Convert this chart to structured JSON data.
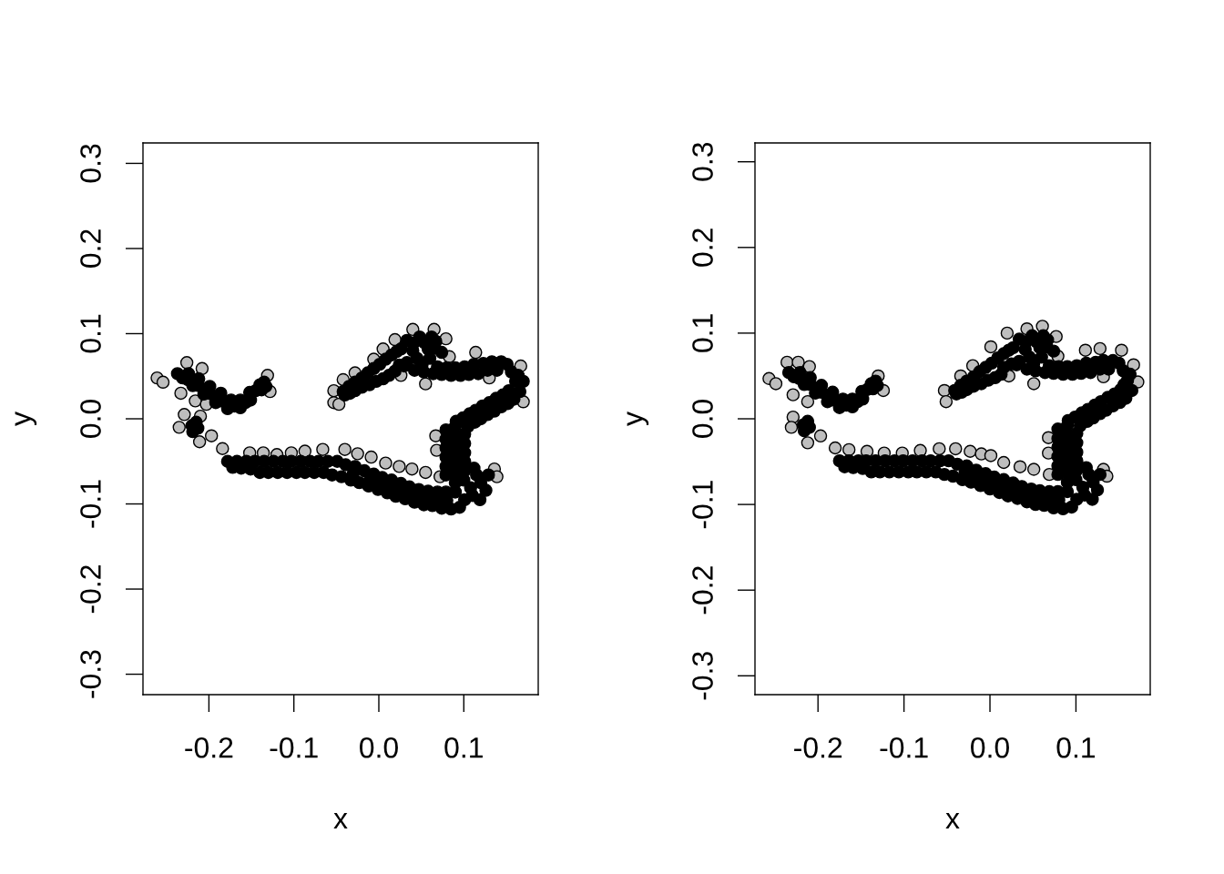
{
  "chart_data": [
    {
      "type": "scatter",
      "xlabel": "x",
      "ylabel": "y",
      "marker": "circle",
      "xlim": [
        -0.2776,
        0.1876
      ],
      "ylim": [
        -0.324,
        0.324
      ],
      "xticks": [
        -0.2,
        -0.1,
        {
          "value": 0,
          "label": "0.0"
        },
        0.1
      ],
      "yticks": [
        -0.3,
        -0.2,
        -0.1,
        {
          "value": 0,
          "label": "0.0"
        },
        0.1,
        0.2,
        0.3
      ],
      "series": [
        {
          "color": "#bebebe",
          "x": [
            -0.261,
            -0.254,
            -0.226,
            -0.208,
            -0.233,
            -0.216,
            -0.203,
            -0.229,
            -0.235,
            -0.211,
            -0.197,
            -0.21,
            -0.128,
            -0.131,
            -0.053,
            -0.053,
            -0.047,
            -0.184,
            -0.152,
            -0.136,
            -0.12,
            -0.103,
            -0.087,
            -0.066,
            -0.04,
            -0.025,
            -0.009,
            0.008,
            0.024,
            0.039,
            0.055,
            0.072,
            0.136,
            0.139,
            0.04,
            0.065,
            0.079,
            0.083,
            0.114,
            0.167,
            0.17,
            0.026,
            0.055,
            0.13,
            -0.042,
            -0.028,
            -0.006,
            0.005,
            0.019,
            0.068,
            0.067
          ],
          "values": [
            0.048,
            0.043,
            0.066,
            0.059,
            0.03,
            0.021,
            0.017,
            0.005,
            -0.01,
            -0.027,
            -0.02,
            0.003,
            0.032,
            0.051,
            0.033,
            0.019,
            0.017,
            -0.035,
            -0.04,
            -0.04,
            -0.042,
            -0.04,
            -0.038,
            -0.036,
            -0.036,
            -0.041,
            -0.045,
            -0.052,
            -0.056,
            -0.059,
            -0.063,
            -0.068,
            -0.059,
            -0.068,
            0.105,
            0.105,
            0.094,
            0.073,
            0.078,
            0.062,
            0.02,
            0.051,
            0.041,
            0.048,
            0.046,
            0.054,
            0.07,
            0.082,
            0.093,
            -0.037,
            -0.02
          ]
        },
        {
          "color": "#000000",
          "x": [
            -0.237,
            -0.224,
            -0.212,
            -0.199,
            -0.186,
            -0.174,
            -0.163,
            -0.152,
            -0.14,
            -0.133,
            -0.231,
            -0.219,
            -0.206,
            -0.192,
            -0.178,
            -0.163,
            -0.151,
            -0.138,
            -0.135,
            -0.225,
            -0.212,
            -0.199,
            -0.186,
            -0.17,
            -0.157,
            -0.145,
            -0.22,
            -0.213,
            -0.219,
            -0.215,
            -0.178,
            -0.167,
            -0.156,
            -0.146,
            -0.135,
            -0.124,
            -0.113,
            -0.103,
            -0.092,
            -0.081,
            -0.071,
            -0.06,
            -0.049,
            -0.039,
            -0.028,
            -0.017,
            -0.006,
            0.004,
            0.015,
            0.026,
            0.036,
            0.047,
            0.058,
            0.069,
            0.079,
            -0.172,
            -0.162,
            -0.151,
            -0.14,
            -0.13,
            -0.119,
            -0.108,
            -0.097,
            -0.087,
            -0.076,
            -0.065,
            -0.055,
            -0.044,
            -0.033,
            -0.023,
            -0.012,
            -0.001,
            0.01,
            0.02,
            0.031,
            0.042,
            0.053,
            0.063,
            0.074,
            0.085,
            0.095,
            -0.03,
            -0.01,
            0.0,
            0.01,
            0.02,
            0.03,
            0.04,
            0.05,
            0.06,
            0.07,
            0.08,
            0.115,
            0.129,
            0.108,
            0.126,
            0.101,
            0.119,
            0.12,
            0.11,
            0.1,
            0.09,
            0.09,
            0.112,
            0.079,
            0.079,
            0.079,
            0.079,
            0.079,
            0.079,
            0.09,
            0.09,
            0.09,
            0.09,
            0.09,
            0.09,
            0.101,
            0.101,
            0.101,
            0.101,
            0.101,
            0.091,
            0.099,
            0.107,
            0.114,
            0.122,
            0.13,
            0.138,
            0.146,
            0.153,
            0.105,
            0.113,
            0.12,
            0.128,
            0.136,
            0.144,
            0.152,
            0.159,
            0.166,
            0.161,
            0.156,
            0.151,
            0.17,
            0.164,
            0.144,
            0.133,
            0.123,
            0.112,
            0.101,
            0.09,
            0.08,
            0.069,
            0.139,
            0.128,
            0.117,
            0.106,
            0.096,
            0.085,
            0.074,
            0.064,
            0.053,
            0.042,
            0.033,
            0.048,
            0.062,
            0.067,
            0.04,
            0.058,
            0.074,
            0.033,
            0.051,
            0.041,
            0.054,
            0.066,
            0.045,
            0.06,
            -0.042,
            -0.035,
            -0.028,
            -0.02,
            -0.013,
            -0.006,
            0.001,
            0.008,
            0.015,
            0.021,
            0.026,
            -0.04,
            -0.034,
            -0.028,
            -0.02,
            -0.011,
            -0.003,
            0.005,
            0.012,
            0.019,
            0.024,
            0.03
          ],
          "values": [
            0.053,
            0.053,
            0.047,
            0.038,
            0.03,
            0.022,
            0.022,
            0.031,
            0.04,
            0.038,
            0.048,
            0.039,
            0.029,
            0.019,
            0.012,
            0.013,
            0.022,
            0.034,
            0.043,
            0.046,
            0.039,
            0.03,
            0.021,
            0.015,
            0.019,
            0.033,
            -0.008,
            -0.011,
            -0.015,
            -0.004,
            -0.05,
            -0.05,
            -0.05,
            -0.05,
            -0.05,
            -0.05,
            -0.05,
            -0.05,
            -0.05,
            -0.05,
            -0.05,
            -0.05,
            -0.05,
            -0.054,
            -0.056,
            -0.061,
            -0.065,
            -0.069,
            -0.072,
            -0.076,
            -0.08,
            -0.083,
            -0.085,
            -0.086,
            -0.086,
            -0.057,
            -0.058,
            -0.059,
            -0.063,
            -0.063,
            -0.063,
            -0.063,
            -0.063,
            -0.063,
            -0.063,
            -0.063,
            -0.066,
            -0.068,
            -0.072,
            -0.075,
            -0.079,
            -0.083,
            -0.087,
            -0.091,
            -0.094,
            -0.098,
            -0.101,
            -0.102,
            -0.105,
            -0.106,
            -0.104,
            -0.064,
            -0.071,
            -0.075,
            -0.079,
            -0.082,
            -0.086,
            -0.089,
            -0.092,
            -0.094,
            -0.095,
            -0.096,
            -0.066,
            -0.066,
            -0.081,
            -0.084,
            -0.095,
            -0.095,
            -0.075,
            -0.09,
            -0.072,
            -0.075,
            -0.086,
            -0.058,
            -0.066,
            -0.056,
            -0.045,
            -0.034,
            -0.024,
            -0.013,
            -0.063,
            -0.052,
            -0.041,
            -0.031,
            -0.02,
            -0.009,
            -0.061,
            -0.05,
            -0.04,
            -0.029,
            -0.018,
            -0.003,
            0.001,
            0.006,
            0.01,
            0.015,
            0.019,
            0.024,
            0.028,
            0.033,
            -0.009,
            -0.004,
            0.0,
            0.005,
            0.009,
            0.014,
            0.018,
            0.023,
            0.032,
            0.044,
            0.055,
            0.064,
            0.044,
            0.051,
            0.067,
            0.067,
            0.065,
            0.064,
            0.061,
            0.06,
            0.06,
            0.061,
            0.057,
            0.057,
            0.053,
            0.052,
            0.051,
            0.051,
            0.052,
            0.053,
            0.055,
            0.057,
            0.092,
            0.096,
            0.096,
            0.091,
            0.08,
            0.082,
            0.078,
            0.066,
            0.064,
            0.089,
            0.089,
            0.083,
            0.071,
            0.071,
            0.032,
            0.038,
            0.043,
            0.048,
            0.054,
            0.059,
            0.064,
            0.07,
            0.075,
            0.079,
            0.082,
            0.028,
            0.03,
            0.033,
            0.037,
            0.04,
            0.044,
            0.047,
            0.051,
            0.056,
            0.063,
            0.062
          ]
        }
      ]
    },
    {
      "type": "scatter",
      "xlabel": "x",
      "ylabel": "y",
      "marker": "circle",
      "xlim": [
        -0.2733,
        0.1864
      ],
      "ylim": [
        -0.322,
        0.322
      ],
      "xticks": [
        -0.2,
        -0.1,
        {
          "value": 0,
          "label": "0.0"
        },
        0.1
      ],
      "yticks": [
        -0.3,
        -0.2,
        -0.1,
        {
          "value": 0,
          "label": "0.0"
        },
        0.1,
        0.2,
        0.3
      ],
      "series": [
        {
          "color": "#bebebe",
          "x": [
            -0.257,
            -0.249,
            -0.236,
            -0.223,
            -0.21,
            -0.229,
            -0.212,
            -0.229,
            -0.231,
            -0.197,
            -0.212,
            -0.13,
            -0.124,
            -0.053,
            -0.051,
            -0.18,
            -0.164,
            -0.143,
            -0.123,
            -0.102,
            -0.081,
            -0.059,
            -0.04,
            -0.023,
            -0.01,
            0.001,
            0.016,
            0.035,
            0.051,
            0.069,
            0.132,
            0.136,
            0.068,
            0.068,
            0.043,
            0.061,
            0.077,
            0.079,
            0.111,
            0.128,
            0.153,
            0.167,
            0.172,
            0.022,
            0.051,
            0.132,
            0.001,
            0.02,
            -0.02,
            -0.034
          ],
          "values": [
            0.047,
            0.041,
            0.066,
            0.066,
            0.061,
            0.028,
            0.02,
            0.002,
            -0.01,
            -0.02,
            -0.028,
            0.05,
            0.033,
            0.033,
            0.02,
            -0.034,
            -0.036,
            -0.038,
            -0.04,
            -0.04,
            -0.037,
            -0.035,
            -0.035,
            -0.038,
            -0.041,
            -0.043,
            -0.051,
            -0.056,
            -0.059,
            -0.065,
            -0.059,
            -0.067,
            -0.022,
            -0.04,
            0.105,
            0.108,
            0.096,
            0.073,
            0.08,
            0.082,
            0.08,
            0.063,
            0.043,
            0.05,
            0.041,
            0.049,
            0.084,
            0.1,
            0.062,
            0.05
          ]
        },
        {
          "color": "#000000",
          "x": [
            -0.234,
            -0.221,
            -0.209,
            -0.196,
            -0.183,
            -0.171,
            -0.16,
            -0.149,
            -0.138,
            -0.131,
            -0.228,
            -0.216,
            -0.203,
            -0.189,
            -0.175,
            -0.16,
            -0.148,
            -0.136,
            -0.133,
            -0.222,
            -0.209,
            -0.196,
            -0.183,
            -0.167,
            -0.154,
            -0.143,
            -0.217,
            -0.21,
            -0.216,
            -0.212,
            -0.175,
            -0.164,
            -0.153,
            -0.144,
            -0.133,
            -0.122,
            -0.111,
            -0.101,
            -0.09,
            -0.079,
            -0.069,
            -0.058,
            -0.048,
            -0.038,
            -0.027,
            -0.016,
            -0.005,
            0.005,
            0.016,
            0.027,
            0.037,
            0.048,
            0.058,
            0.069,
            0.079,
            -0.169,
            -0.159,
            -0.148,
            -0.138,
            -0.128,
            -0.117,
            -0.106,
            -0.095,
            -0.085,
            -0.074,
            -0.063,
            -0.053,
            -0.043,
            -0.032,
            -0.022,
            -0.011,
            0.0,
            0.011,
            0.021,
            0.032,
            0.043,
            0.053,
            0.063,
            0.074,
            0.085,
            0.095,
            -0.029,
            -0.019,
            -0.009,
            0.001,
            0.011,
            0.021,
            0.031,
            0.041,
            0.05,
            0.06,
            0.07,
            0.08,
            0.115,
            0.128,
            0.108,
            0.125,
            0.101,
            0.119,
            0.12,
            0.11,
            0.1,
            0.09,
            0.09,
            0.112,
            0.079,
            0.079,
            0.079,
            0.079,
            0.079,
            0.079,
            0.09,
            0.09,
            0.09,
            0.09,
            0.09,
            0.09,
            0.101,
            0.101,
            0.101,
            0.101,
            0.101,
            0.091,
            0.099,
            0.107,
            0.114,
            0.122,
            0.129,
            0.137,
            0.145,
            0.152,
            0.105,
            0.113,
            0.12,
            0.128,
            0.135,
            0.143,
            0.151,
            0.158,
            0.165,
            0.16,
            0.155,
            0.15,
            0.163,
            0.156,
            0.143,
            0.132,
            0.123,
            0.112,
            0.101,
            0.09,
            0.08,
            0.069,
            0.138,
            0.128,
            0.117,
            0.106,
            0.096,
            0.085,
            0.074,
            0.064,
            0.053,
            0.043,
            0.034,
            0.049,
            0.062,
            0.067,
            0.041,
            0.058,
            0.074,
            0.034,
            0.051,
            0.042,
            0.054,
            0.066,
            0.046,
            0.06,
            -0.041,
            -0.034,
            -0.027,
            -0.019,
            -0.012,
            -0.005,
            0.002,
            0.009,
            0.016,
            0.022,
            0.027,
            -0.039,
            -0.033,
            -0.027,
            -0.019,
            -0.01,
            -0.002,
            0.006,
            0.013,
            0.016,
            0.025,
            0.031
          ],
          "values": [
            0.054,
            0.054,
            0.048,
            0.039,
            0.031,
            0.023,
            0.023,
            0.032,
            0.041,
            0.039,
            0.049,
            0.04,
            0.03,
            0.02,
            0.013,
            0.014,
            0.023,
            0.035,
            0.044,
            0.047,
            0.04,
            0.031,
            0.022,
            0.016,
            0.02,
            0.034,
            -0.007,
            -0.01,
            -0.014,
            -0.003,
            -0.049,
            -0.049,
            -0.049,
            -0.049,
            -0.049,
            -0.049,
            -0.049,
            -0.049,
            -0.049,
            -0.049,
            -0.049,
            -0.049,
            -0.049,
            -0.053,
            -0.055,
            -0.06,
            -0.064,
            -0.068,
            -0.071,
            -0.075,
            -0.079,
            -0.082,
            -0.084,
            -0.085,
            -0.085,
            -0.056,
            -0.057,
            -0.058,
            -0.062,
            -0.062,
            -0.062,
            -0.062,
            -0.062,
            -0.062,
            -0.062,
            -0.062,
            -0.065,
            -0.067,
            -0.071,
            -0.074,
            -0.078,
            -0.082,
            -0.086,
            -0.09,
            -0.093,
            -0.097,
            -0.1,
            -0.101,
            -0.104,
            -0.105,
            -0.103,
            -0.063,
            -0.066,
            -0.07,
            -0.074,
            -0.078,
            -0.081,
            -0.085,
            -0.088,
            -0.091,
            -0.093,
            -0.094,
            -0.095,
            -0.065,
            -0.065,
            -0.08,
            -0.083,
            -0.094,
            -0.094,
            -0.074,
            -0.089,
            -0.071,
            -0.074,
            -0.085,
            -0.057,
            -0.065,
            -0.055,
            -0.044,
            -0.033,
            -0.023,
            -0.012,
            -0.062,
            -0.051,
            -0.04,
            -0.03,
            -0.019,
            -0.008,
            -0.06,
            -0.049,
            -0.039,
            -0.028,
            -0.017,
            -0.002,
            0.002,
            0.007,
            0.011,
            0.016,
            0.02,
            0.025,
            0.029,
            0.034,
            -0.008,
            -0.003,
            0.001,
            0.006,
            0.01,
            0.015,
            0.019,
            0.024,
            0.033,
            0.045,
            0.056,
            0.065,
            0.052,
            0.04,
            0.068,
            0.068,
            0.066,
            0.065,
            0.062,
            0.061,
            0.061,
            0.062,
            0.058,
            0.058,
            0.054,
            0.053,
            0.052,
            0.052,
            0.053,
            0.054,
            0.056,
            0.058,
            0.093,
            0.097,
            0.097,
            0.092,
            0.081,
            0.083,
            0.079,
            0.067,
            0.065,
            0.09,
            0.09,
            0.084,
            0.072,
            0.072,
            0.033,
            0.039,
            0.044,
            0.049,
            0.055,
            0.06,
            0.065,
            0.071,
            0.076,
            0.08,
            0.083,
            0.029,
            0.031,
            0.034,
            0.038,
            0.041,
            0.045,
            0.048,
            0.052,
            0.06,
            0.064,
            0.063
          ]
        }
      ]
    }
  ]
}
